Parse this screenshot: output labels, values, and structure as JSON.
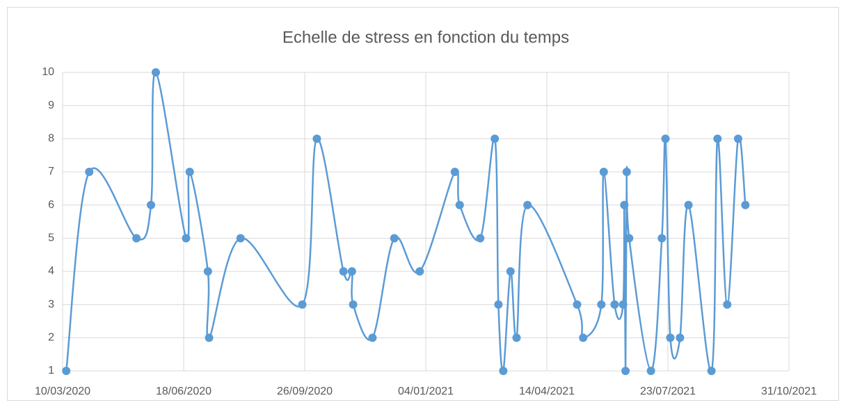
{
  "chart_data": {
    "type": "line",
    "title": "Echelle de stress en fonction du temps",
    "x": [
      "2020-03-13",
      "2020-04-01",
      "2020-05-10",
      "2020-05-22",
      "2020-05-26",
      "2020-06-20",
      "2020-06-23",
      "2020-07-08",
      "2020-07-09",
      "2020-08-04",
      "2020-09-24",
      "2020-10-06",
      "2020-10-28",
      "2020-11-04",
      "2020-11-05",
      "2020-11-21",
      "2020-12-09",
      "2020-12-30",
      "2021-01-28",
      "2021-02-01",
      "2021-02-18",
      "2021-03-02",
      "2021-03-05",
      "2021-03-09",
      "2021-03-15",
      "2021-03-20",
      "2021-03-29",
      "2021-05-09",
      "2021-05-14",
      "2021-05-29",
      "2021-05-31",
      "2021-06-09",
      "2021-06-16",
      "2021-06-17",
      "2021-06-18",
      "2021-06-19",
      "2021-06-21",
      "2021-07-09",
      "2021-07-18",
      "2021-07-21",
      "2021-07-25",
      "2021-08-02",
      "2021-08-09",
      "2021-08-28",
      "2021-09-02",
      "2021-09-10",
      "2021-09-19",
      "2021-09-25"
    ],
    "series": [
      {
        "color": "#5b9bd5",
        "values": [
          1,
          7,
          5,
          6,
          10,
          5,
          7,
          4,
          2,
          5,
          3,
          8,
          4,
          4,
          3,
          2,
          5,
          4,
          7,
          6,
          5,
          8,
          3,
          1,
          4,
          2,
          6,
          3,
          2,
          3,
          7,
          3,
          3,
          6,
          1,
          7,
          5,
          1,
          5,
          8,
          2,
          2,
          6,
          1,
          8,
          3,
          8,
          6
        ]
      }
    ],
    "xlim": [
      "2020-03-10",
      "2021-10-31"
    ],
    "xticks": [
      {
        "value": "2020-03-10",
        "label": "10/03/2020"
      },
      {
        "value": "2020-06-18",
        "label": "18/06/2020"
      },
      {
        "value": "2020-09-26",
        "label": "26/09/2020"
      },
      {
        "value": "2021-01-04",
        "label": "04/01/2021"
      },
      {
        "value": "2021-04-14",
        "label": "14/04/2021"
      },
      {
        "value": "2021-07-23",
        "label": "23/07/2021"
      },
      {
        "value": "2021-10-31",
        "label": "31/10/2021"
      }
    ],
    "ylim": [
      1,
      10
    ],
    "yticks": [
      1,
      2,
      3,
      4,
      5,
      6,
      7,
      8,
      9,
      10
    ],
    "grid": true,
    "smooth": true
  }
}
